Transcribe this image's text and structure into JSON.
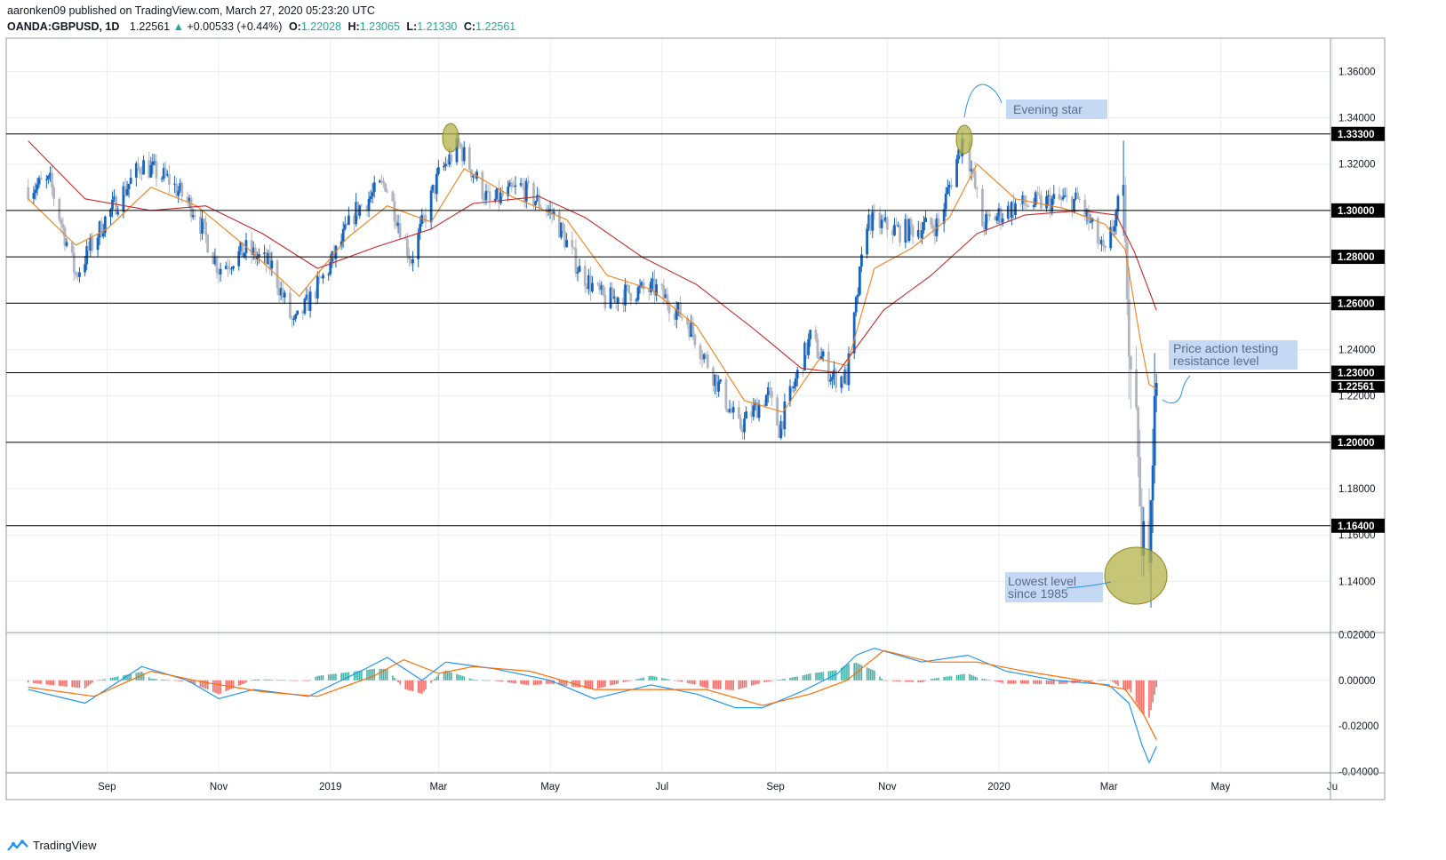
{
  "header": {
    "published": "aaronken09 published on TradingView.com, March 27, 2020 05:23:20 UTC",
    "symbol": "OANDA:GBPUSD, 1D",
    "last": "1.22561",
    "change": "+0.00533 (+0.44%)",
    "o_label": "O:",
    "o": "1.22028",
    "h_label": "H:",
    "h": "1.23065",
    "l_label": "L:",
    "l": "1.21330",
    "c_label": "C:",
    "c": "1.22561"
  },
  "footer": {
    "brand": "TradingView"
  },
  "colors": {
    "bull": "#1565c0",
    "bear": "#b2b5be",
    "ema_fast": "#f57f17",
    "ema_slow": "#c62828",
    "macd": "#2196f3",
    "signal": "#ff6d00",
    "hist_pos": "#26a69a",
    "hist_neg": "#ef5350",
    "highlight": "#b3b24b"
  },
  "chart_data": [
    {
      "type": "candlestick",
      "instrument": "GBPUSD",
      "timeframe": "1D",
      "x_ticks": [
        "Sep",
        "Nov",
        "2019",
        "Mar",
        "May",
        "Jul",
        "Sep",
        "Nov",
        "2020",
        "Mar",
        "May",
        "Ju"
      ],
      "y_ticks": [
        "1.36000",
        "1.34000",
        "1.32000",
        "1.30000",
        "1.28000",
        "1.26000",
        "1.24000",
        "1.22000",
        "1.20000",
        "1.18000",
        "1.16000",
        "1.14000"
      ],
      "ylim": [
        1.1183,
        1.3743
      ],
      "horizontal_levels": [
        "1.33300",
        "1.30000",
        "1.28000",
        "1.26000",
        "1.23000",
        "1.20000",
        "1.16400"
      ],
      "last_price_label": "1.22561",
      "annotations": [
        {
          "text": "Evening star"
        },
        {
          "text_lines": [
            "Price action testing",
            "resistance level"
          ]
        },
        {
          "text_lines": [
            "Lowest level",
            "since 1985"
          ]
        }
      ],
      "close_path": [
        [
          "2018-07-20",
          1.31
        ],
        [
          "2018-08-01",
          1.312
        ],
        [
          "2018-08-15",
          1.272
        ],
        [
          "2018-08-31",
          1.296
        ],
        [
          "2018-09-20",
          1.32
        ],
        [
          "2018-10-05",
          1.313
        ],
        [
          "2018-10-19",
          1.3
        ],
        [
          "2018-11-01",
          1.275
        ],
        [
          "2018-11-16",
          1.283
        ],
        [
          "2018-11-30",
          1.276
        ],
        [
          "2018-12-12",
          1.25
        ],
        [
          "2018-12-31",
          1.275
        ],
        [
          "2019-01-15",
          1.3
        ],
        [
          "2019-01-31",
          1.312
        ],
        [
          "2019-02-14",
          1.279
        ],
        [
          "2019-03-01",
          1.315
        ],
        [
          "2019-03-12",
          1.328
        ],
        [
          "2019-03-29",
          1.303
        ],
        [
          "2019-04-15",
          1.31
        ],
        [
          "2019-05-03",
          1.298
        ],
        [
          "2019-05-17",
          1.274
        ],
        [
          "2019-05-31",
          1.261
        ],
        [
          "2019-06-14",
          1.265
        ],
        [
          "2019-06-28",
          1.266
        ],
        [
          "2019-07-15",
          1.252
        ],
        [
          "2019-07-31",
          1.226
        ],
        [
          "2019-08-12",
          1.206
        ],
        [
          "2019-08-28",
          1.221
        ],
        [
          "2019-09-03",
          1.206
        ],
        [
          "2019-09-20",
          1.245
        ],
        [
          "2019-10-02",
          1.228
        ],
        [
          "2019-10-10",
          1.228
        ],
        [
          "2019-10-21",
          1.296
        ],
        [
          "2019-11-08",
          1.291
        ],
        [
          "2019-11-29",
          1.294
        ],
        [
          "2019-12-13",
          1.333
        ],
        [
          "2019-12-23",
          1.294
        ],
        [
          "2020-01-10",
          1.302
        ],
        [
          "2020-01-31",
          1.304
        ],
        [
          "2020-02-14",
          1.304
        ],
        [
          "2020-02-28",
          1.28
        ],
        [
          "2020-03-09",
          1.311
        ],
        [
          "2020-03-12",
          1.237
        ],
        [
          "2020-03-16",
          1.215
        ],
        [
          "2020-03-19",
          1.151
        ],
        [
          "2020-03-20",
          1.166
        ],
        [
          "2020-03-23",
          1.148
        ],
        [
          "2020-03-24",
          1.175
        ],
        [
          "2020-03-25",
          1.19
        ],
        [
          "2020-03-26",
          1.22
        ],
        [
          "2020-03-27",
          1.2256
        ]
      ],
      "ema_fast": [
        [
          "2018-07-20",
          1.305
        ],
        [
          "2018-08-15",
          1.285
        ],
        [
          "2018-09-01",
          1.292
        ],
        [
          "2018-09-25",
          1.31
        ],
        [
          "2018-10-20",
          1.302
        ],
        [
          "2018-11-15",
          1.285
        ],
        [
          "2018-12-15",
          1.263
        ],
        [
          "2019-01-10",
          1.288
        ],
        [
          "2019-02-01",
          1.302
        ],
        [
          "2019-02-25",
          1.295
        ],
        [
          "2019-03-15",
          1.318
        ],
        [
          "2019-04-10",
          1.306
        ],
        [
          "2019-05-10",
          1.296
        ],
        [
          "2019-06-01",
          1.272
        ],
        [
          "2019-06-25",
          1.266
        ],
        [
          "2019-07-20",
          1.25
        ],
        [
          "2019-08-15",
          1.218
        ],
        [
          "2019-09-05",
          1.213
        ],
        [
          "2019-09-25",
          1.236
        ],
        [
          "2019-10-10",
          1.233
        ],
        [
          "2019-10-25",
          1.275
        ],
        [
          "2019-11-15",
          1.284
        ],
        [
          "2019-12-05",
          1.297
        ],
        [
          "2019-12-20",
          1.32
        ],
        [
          "2020-01-10",
          1.305
        ],
        [
          "2020-02-05",
          1.301
        ],
        [
          "2020-02-28",
          1.294
        ],
        [
          "2020-03-10",
          1.283
        ],
        [
          "2020-03-18",
          1.245
        ],
        [
          "2020-03-23",
          1.225
        ],
        [
          "2020-03-27",
          1.223
        ]
      ],
      "ema_slow": [
        [
          "2018-07-20",
          1.33
        ],
        [
          "2018-08-20",
          1.305
        ],
        [
          "2018-09-25",
          1.3
        ],
        [
          "2018-10-25",
          1.302
        ],
        [
          "2018-11-25",
          1.29
        ],
        [
          "2018-12-25",
          1.275
        ],
        [
          "2019-01-25",
          1.284
        ],
        [
          "2019-02-25",
          1.292
        ],
        [
          "2019-03-20",
          1.303
        ],
        [
          "2019-04-25",
          1.306
        ],
        [
          "2019-05-20",
          1.297
        ],
        [
          "2019-06-20",
          1.28
        ],
        [
          "2019-07-20",
          1.268
        ],
        [
          "2019-08-20",
          1.249
        ],
        [
          "2019-09-15",
          1.232
        ],
        [
          "2019-10-05",
          1.23
        ],
        [
          "2019-10-30",
          1.257
        ],
        [
          "2019-11-25",
          1.272
        ],
        [
          "2019-12-20",
          1.29
        ],
        [
          "2020-01-15",
          1.298
        ],
        [
          "2020-02-15",
          1.3
        ],
        [
          "2020-03-05",
          1.298
        ],
        [
          "2020-03-15",
          1.282
        ],
        [
          "2020-03-27",
          1.257
        ]
      ]
    },
    {
      "type": "histogram+line",
      "name": "MACD",
      "y_ticks": [
        "0.02000",
        "0.00000",
        "-0.02000",
        "-0.04000"
      ],
      "ylim": [
        -0.0405,
        0.0205
      ],
      "macd": [
        [
          "2018-07-20",
          -0.004
        ],
        [
          "2018-08-20",
          -0.01
        ],
        [
          "2018-09-20",
          0.006
        ],
        [
          "2018-10-15",
          0.0
        ],
        [
          "2018-11-01",
          -0.008
        ],
        [
          "2018-11-20",
          -0.004
        ],
        [
          "2018-12-20",
          -0.007
        ],
        [
          "2019-01-20",
          0.005
        ],
        [
          "2019-02-01",
          0.01
        ],
        [
          "2019-02-20",
          0.0
        ],
        [
          "2019-03-05",
          0.008
        ],
        [
          "2019-04-01",
          0.005
        ],
        [
          "2019-05-01",
          0.0
        ],
        [
          "2019-05-25",
          -0.008
        ],
        [
          "2019-06-25",
          -0.002
        ],
        [
          "2019-07-20",
          -0.006
        ],
        [
          "2019-08-10",
          -0.012
        ],
        [
          "2019-08-25",
          -0.012
        ],
        [
          "2019-09-15",
          -0.005
        ],
        [
          "2019-10-05",
          0.003
        ],
        [
          "2019-10-15",
          0.011
        ],
        [
          "2019-10-25",
          0.014
        ],
        [
          "2019-11-20",
          0.008
        ],
        [
          "2019-12-15",
          0.011
        ],
        [
          "2020-01-05",
          0.004
        ],
        [
          "2020-02-01",
          0.0
        ],
        [
          "2020-03-01",
          -0.002
        ],
        [
          "2020-03-12",
          -0.01
        ],
        [
          "2020-03-19",
          -0.028
        ],
        [
          "2020-03-23",
          -0.036
        ],
        [
          "2020-03-27",
          -0.029
        ]
      ],
      "signal": [
        [
          "2018-07-20",
          -0.003
        ],
        [
          "2018-08-25",
          -0.007
        ],
        [
          "2018-09-25",
          0.004
        ],
        [
          "2018-10-25",
          -0.001
        ],
        [
          "2018-11-25",
          -0.005
        ],
        [
          "2018-12-25",
          -0.007
        ],
        [
          "2019-01-25",
          0.002
        ],
        [
          "2019-02-10",
          0.009
        ],
        [
          "2019-03-01",
          0.003
        ],
        [
          "2019-03-20",
          0.006
        ],
        [
          "2019-04-20",
          0.004
        ],
        [
          "2019-05-25",
          -0.004
        ],
        [
          "2019-06-25",
          -0.004
        ],
        [
          "2019-07-25",
          -0.004
        ],
        [
          "2019-08-25",
          -0.011
        ],
        [
          "2019-09-20",
          -0.006
        ],
        [
          "2019-10-10",
          0.0
        ],
        [
          "2019-10-30",
          0.013
        ],
        [
          "2019-11-25",
          0.008
        ],
        [
          "2019-12-20",
          0.008
        ],
        [
          "2020-01-15",
          0.004
        ],
        [
          "2020-02-15",
          0.0
        ],
        [
          "2020-03-10",
          -0.004
        ],
        [
          "2020-03-20",
          -0.015
        ],
        [
          "2020-03-27",
          -0.026
        ]
      ]
    }
  ]
}
